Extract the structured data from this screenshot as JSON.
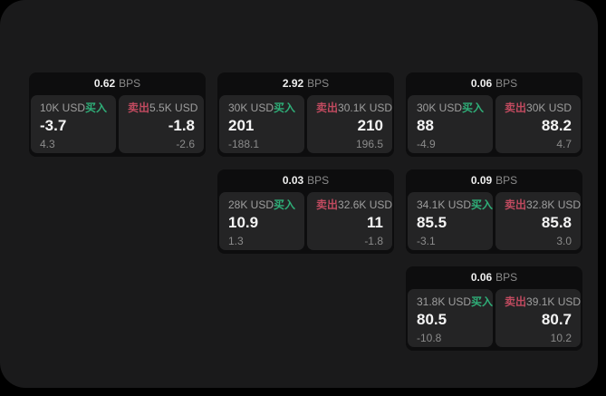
{
  "labels": {
    "bps_unit": "BPS",
    "buy": "买入",
    "sell": "卖出"
  },
  "colors": {
    "outer_background": "#000000",
    "page_surface": "#1a1a1b",
    "card_background": "#0d0d0e",
    "panel_background": "#242425",
    "buy_accent": "#2fae78",
    "sell_accent": "#c04a5f",
    "primary_text": "#f4f4f4",
    "muted_text": "#8b8b8b"
  },
  "cards": [
    {
      "bps": "0.62",
      "buy": {
        "amount": "10K USD",
        "price": "-3.7",
        "sub": "4.3"
      },
      "sell": {
        "amount": "5.5K USD",
        "price": "-1.8",
        "sub": "-2.6"
      }
    },
    {
      "bps": "2.92",
      "buy": {
        "amount": "30K USD",
        "price": "201",
        "sub": "-188.1"
      },
      "sell": {
        "amount": "30.1K USD",
        "price": "210",
        "sub": "196.5"
      }
    },
    {
      "bps": "0.06",
      "buy": {
        "amount": "30K USD",
        "price": "88",
        "sub": "-4.9"
      },
      "sell": {
        "amount": "30K USD",
        "price": "88.2",
        "sub": "4.7"
      }
    },
    {
      "bps": "0.03",
      "buy": {
        "amount": "28K USD",
        "price": "10.9",
        "sub": "1.3"
      },
      "sell": {
        "amount": "32.6K USD",
        "price": "11",
        "sub": "-1.8"
      }
    },
    {
      "bps": "0.09",
      "buy": {
        "amount": "34.1K USD",
        "price": "85.5",
        "sub": "-3.1"
      },
      "sell": {
        "amount": "32.8K USD",
        "price": "85.8",
        "sub": "3.0"
      }
    },
    {
      "bps": "0.06",
      "buy": {
        "amount": "31.8K USD",
        "price": "80.5",
        "sub": "-10.8"
      },
      "sell": {
        "amount": "39.1K USD",
        "price": "80.7",
        "sub": "10.2"
      }
    }
  ]
}
